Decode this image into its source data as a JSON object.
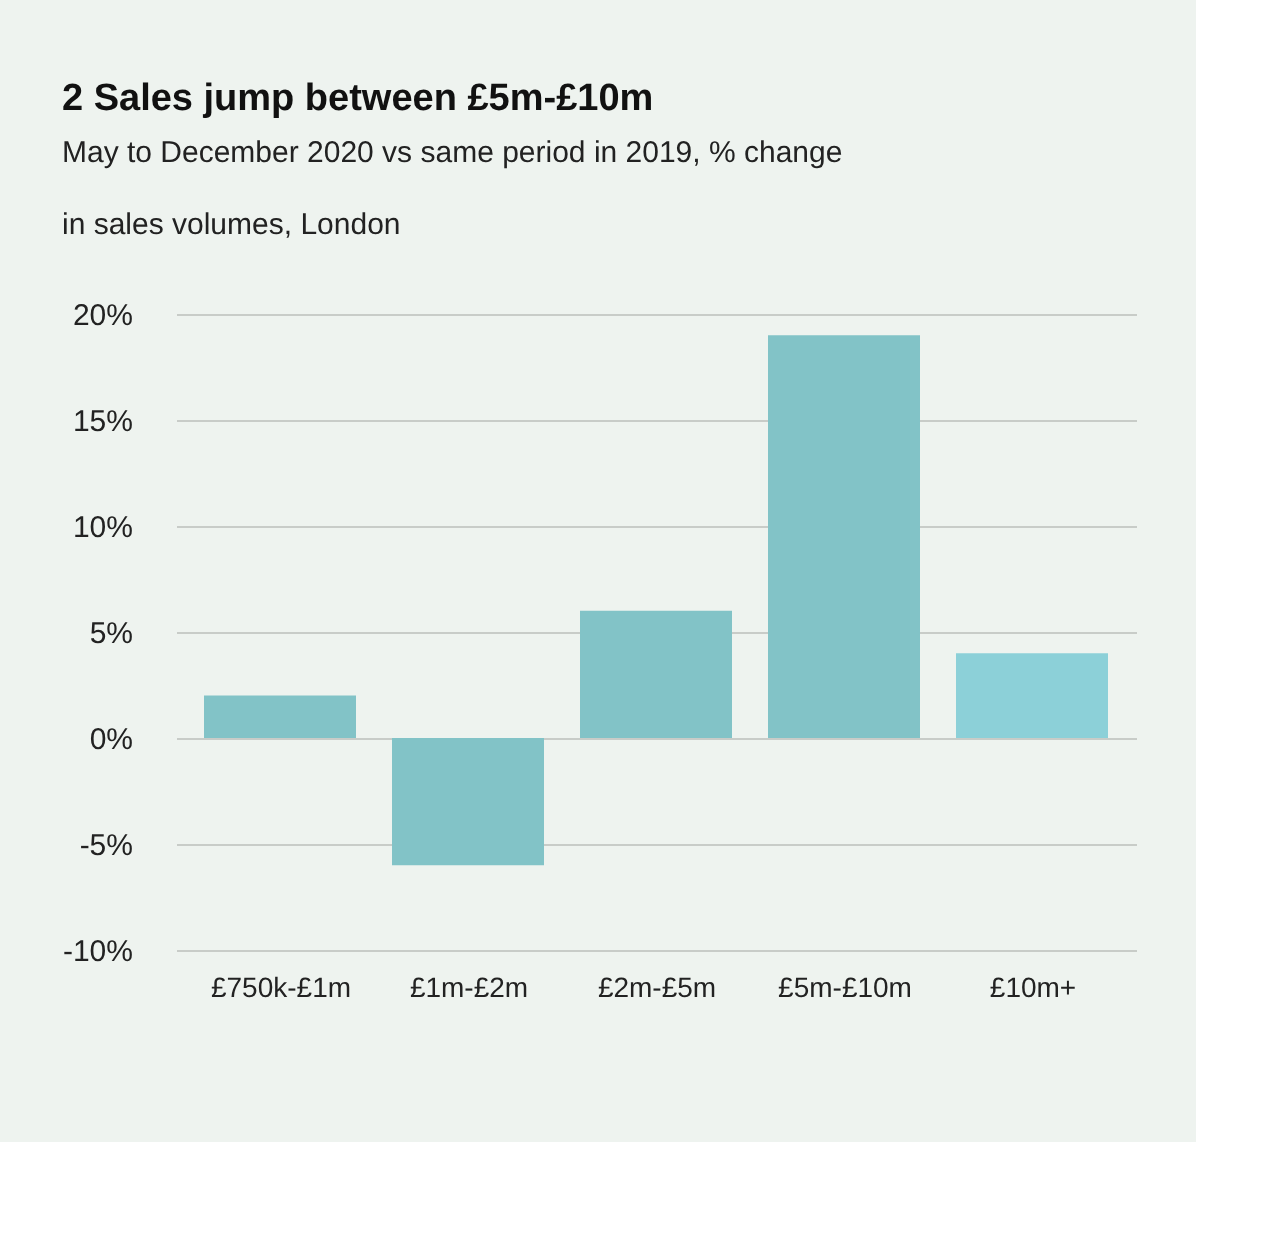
{
  "chart_data": {
    "type": "bar",
    "title": "2 Sales jump between £5m-£10m",
    "subtitle": "May to December 2020 vs same period in 2019, % change\nin sales volumes, London",
    "categories": [
      "£750k-£1m",
      "£1m-£2m",
      "£2m-£5m",
      "£5m-£10m",
      "£10m+"
    ],
    "values": [
      2,
      -6,
      6,
      19,
      4
    ],
    "colors": [
      "#82c3c7",
      "#82c3c7",
      "#82c3c7",
      "#82c3c7",
      "#8cd0d8"
    ],
    "ylim": [
      -10,
      20
    ],
    "yticks": [
      {
        "value": -10,
        "label": "-10%"
      },
      {
        "value": -5,
        "label": "-5%"
      },
      {
        "value": 0,
        "label": "0%"
      },
      {
        "value": 5,
        "label": "5%"
      },
      {
        "value": 10,
        "label": "10%"
      },
      {
        "value": 15,
        "label": "15%"
      },
      {
        "value": 20,
        "label": "20%"
      }
    ],
    "grid": "y"
  }
}
